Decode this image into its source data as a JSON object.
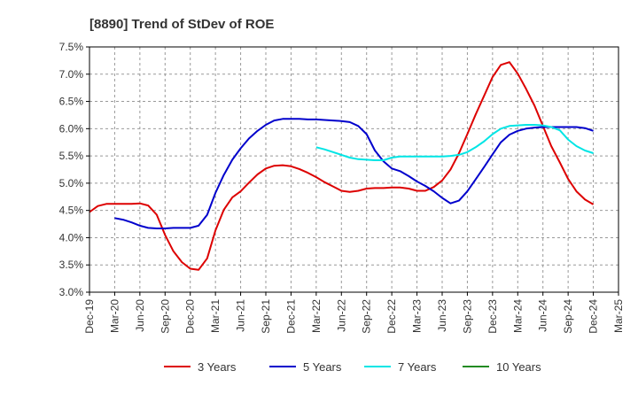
{
  "chart_data": {
    "type": "line",
    "title": "[8890]  Trend of StDev of ROE",
    "xlabel": "",
    "ylabel": "",
    "ylim": [
      3.0,
      7.5
    ],
    "yticks": [
      "3.0%",
      "3.5%",
      "4.0%",
      "4.5%",
      "5.0%",
      "5.5%",
      "6.0%",
      "6.5%",
      "7.0%",
      "7.5%"
    ],
    "ytick_values": [
      3.0,
      3.5,
      4.0,
      4.5,
      5.0,
      5.5,
      6.0,
      6.5,
      7.0,
      7.5
    ],
    "xticks": [
      "Dec-19",
      "Mar-20",
      "Jun-20",
      "Sep-20",
      "Dec-20",
      "Mar-21",
      "Jun-21",
      "Sep-21",
      "Dec-21",
      "Mar-22",
      "Jun-22",
      "Sep-22",
      "Dec-22",
      "Mar-23",
      "Jun-23",
      "Sep-23",
      "Dec-23",
      "Mar-24",
      "Jun-24",
      "Sep-24",
      "Dec-24",
      "Mar-25"
    ],
    "grid": true,
    "legend_position": "bottom",
    "series": [
      {
        "name": "3 Years",
        "color": "#dd0000",
        "points": [
          [
            0,
            4.47
          ],
          [
            0.33,
            4.58
          ],
          [
            0.67,
            4.62
          ],
          [
            1,
            4.62
          ],
          [
            1.33,
            4.62
          ],
          [
            1.67,
            4.62
          ],
          [
            2,
            4.63
          ],
          [
            2.33,
            4.59
          ],
          [
            2.67,
            4.42
          ],
          [
            3,
            4.05
          ],
          [
            3.33,
            3.75
          ],
          [
            3.67,
            3.55
          ],
          [
            4,
            3.43
          ],
          [
            4.33,
            3.41
          ],
          [
            4.67,
            3.62
          ],
          [
            5,
            4.13
          ],
          [
            5.33,
            4.51
          ],
          [
            5.67,
            4.74
          ],
          [
            6,
            4.85
          ],
          [
            6.33,
            5.01
          ],
          [
            6.67,
            5.16
          ],
          [
            7,
            5.27
          ],
          [
            7.33,
            5.32
          ],
          [
            7.67,
            5.33
          ],
          [
            8,
            5.31
          ],
          [
            8.33,
            5.26
          ],
          [
            8.67,
            5.19
          ],
          [
            9,
            5.11
          ],
          [
            9.33,
            5.02
          ],
          [
            9.67,
            4.94
          ],
          [
            10,
            4.86
          ],
          [
            10.33,
            4.84
          ],
          [
            10.67,
            4.86
          ],
          [
            11,
            4.9
          ],
          [
            11.33,
            4.91
          ],
          [
            11.67,
            4.91
          ],
          [
            12,
            4.92
          ],
          [
            12.33,
            4.92
          ],
          [
            12.67,
            4.9
          ],
          [
            13,
            4.86
          ],
          [
            13.33,
            4.86
          ],
          [
            13.67,
            4.93
          ],
          [
            14,
            5.05
          ],
          [
            14.33,
            5.25
          ],
          [
            14.67,
            5.55
          ],
          [
            15,
            5.9
          ],
          [
            15.33,
            6.26
          ],
          [
            15.67,
            6.61
          ],
          [
            16,
            6.95
          ],
          [
            16.33,
            7.17
          ],
          [
            16.67,
            7.22
          ],
          [
            17,
            7.01
          ],
          [
            17.33,
            6.73
          ],
          [
            17.67,
            6.42
          ],
          [
            18,
            6.05
          ],
          [
            18.33,
            5.68
          ],
          [
            18.67,
            5.38
          ],
          [
            19,
            5.08
          ],
          [
            19.33,
            4.85
          ],
          [
            19.67,
            4.7
          ],
          [
            20,
            4.61
          ]
        ]
      },
      {
        "name": "5 Years",
        "color": "#0000cc",
        "points": [
          [
            1,
            4.36
          ],
          [
            1.33,
            4.33
          ],
          [
            1.67,
            4.28
          ],
          [
            2,
            4.22
          ],
          [
            2.33,
            4.18
          ],
          [
            2.67,
            4.17
          ],
          [
            3,
            4.17
          ],
          [
            3.33,
            4.18
          ],
          [
            3.67,
            4.18
          ],
          [
            4,
            4.18
          ],
          [
            4.33,
            4.22
          ],
          [
            4.67,
            4.42
          ],
          [
            5,
            4.82
          ],
          [
            5.33,
            5.15
          ],
          [
            5.67,
            5.43
          ],
          [
            6,
            5.64
          ],
          [
            6.33,
            5.82
          ],
          [
            6.67,
            5.96
          ],
          [
            7,
            6.07
          ],
          [
            7.33,
            6.15
          ],
          [
            7.67,
            6.18
          ],
          [
            8,
            6.18
          ],
          [
            8.33,
            6.18
          ],
          [
            8.67,
            6.17
          ],
          [
            9,
            6.17
          ],
          [
            9.33,
            6.16
          ],
          [
            9.67,
            6.15
          ],
          [
            10,
            6.14
          ],
          [
            10.33,
            6.12
          ],
          [
            10.67,
            6.05
          ],
          [
            11,
            5.9
          ],
          [
            11.33,
            5.6
          ],
          [
            11.67,
            5.4
          ],
          [
            12,
            5.27
          ],
          [
            12.33,
            5.22
          ],
          [
            12.67,
            5.13
          ],
          [
            13,
            5.03
          ],
          [
            13.33,
            4.95
          ],
          [
            13.67,
            4.85
          ],
          [
            14,
            4.73
          ],
          [
            14.33,
            4.63
          ],
          [
            14.67,
            4.68
          ],
          [
            15,
            4.85
          ],
          [
            15.33,
            5.07
          ],
          [
            15.67,
            5.3
          ],
          [
            16,
            5.53
          ],
          [
            16.33,
            5.75
          ],
          [
            16.67,
            5.89
          ],
          [
            17,
            5.96
          ],
          [
            17.33,
            6.0
          ],
          [
            17.67,
            6.02
          ],
          [
            18,
            6.03
          ],
          [
            18.33,
            6.03
          ],
          [
            18.67,
            6.03
          ],
          [
            19,
            6.03
          ],
          [
            19.33,
            6.03
          ],
          [
            19.67,
            6.01
          ],
          [
            20,
            5.96
          ]
        ]
      },
      {
        "name": "7 Years",
        "color": "#00e5e5",
        "points": [
          [
            9,
            5.66
          ],
          [
            9.33,
            5.62
          ],
          [
            9.67,
            5.57
          ],
          [
            10,
            5.52
          ],
          [
            10.33,
            5.47
          ],
          [
            10.67,
            5.44
          ],
          [
            11,
            5.43
          ],
          [
            11.33,
            5.42
          ],
          [
            11.67,
            5.42
          ],
          [
            12,
            5.47
          ],
          [
            12.33,
            5.49
          ],
          [
            12.67,
            5.49
          ],
          [
            13,
            5.49
          ],
          [
            13.33,
            5.49
          ],
          [
            13.67,
            5.49
          ],
          [
            14,
            5.49
          ],
          [
            14.33,
            5.5
          ],
          [
            14.67,
            5.52
          ],
          [
            15,
            5.57
          ],
          [
            15.33,
            5.66
          ],
          [
            15.67,
            5.77
          ],
          [
            16,
            5.9
          ],
          [
            16.33,
            6.0
          ],
          [
            16.67,
            6.05
          ],
          [
            17,
            6.06
          ],
          [
            17.33,
            6.07
          ],
          [
            17.67,
            6.07
          ],
          [
            18,
            6.06
          ],
          [
            18.33,
            6.03
          ],
          [
            18.67,
            5.97
          ],
          [
            19,
            5.8
          ],
          [
            19.33,
            5.68
          ],
          [
            19.67,
            5.6
          ],
          [
            20,
            5.55
          ]
        ]
      },
      {
        "name": "10 Years",
        "color": "#228b22",
        "points": []
      }
    ]
  }
}
